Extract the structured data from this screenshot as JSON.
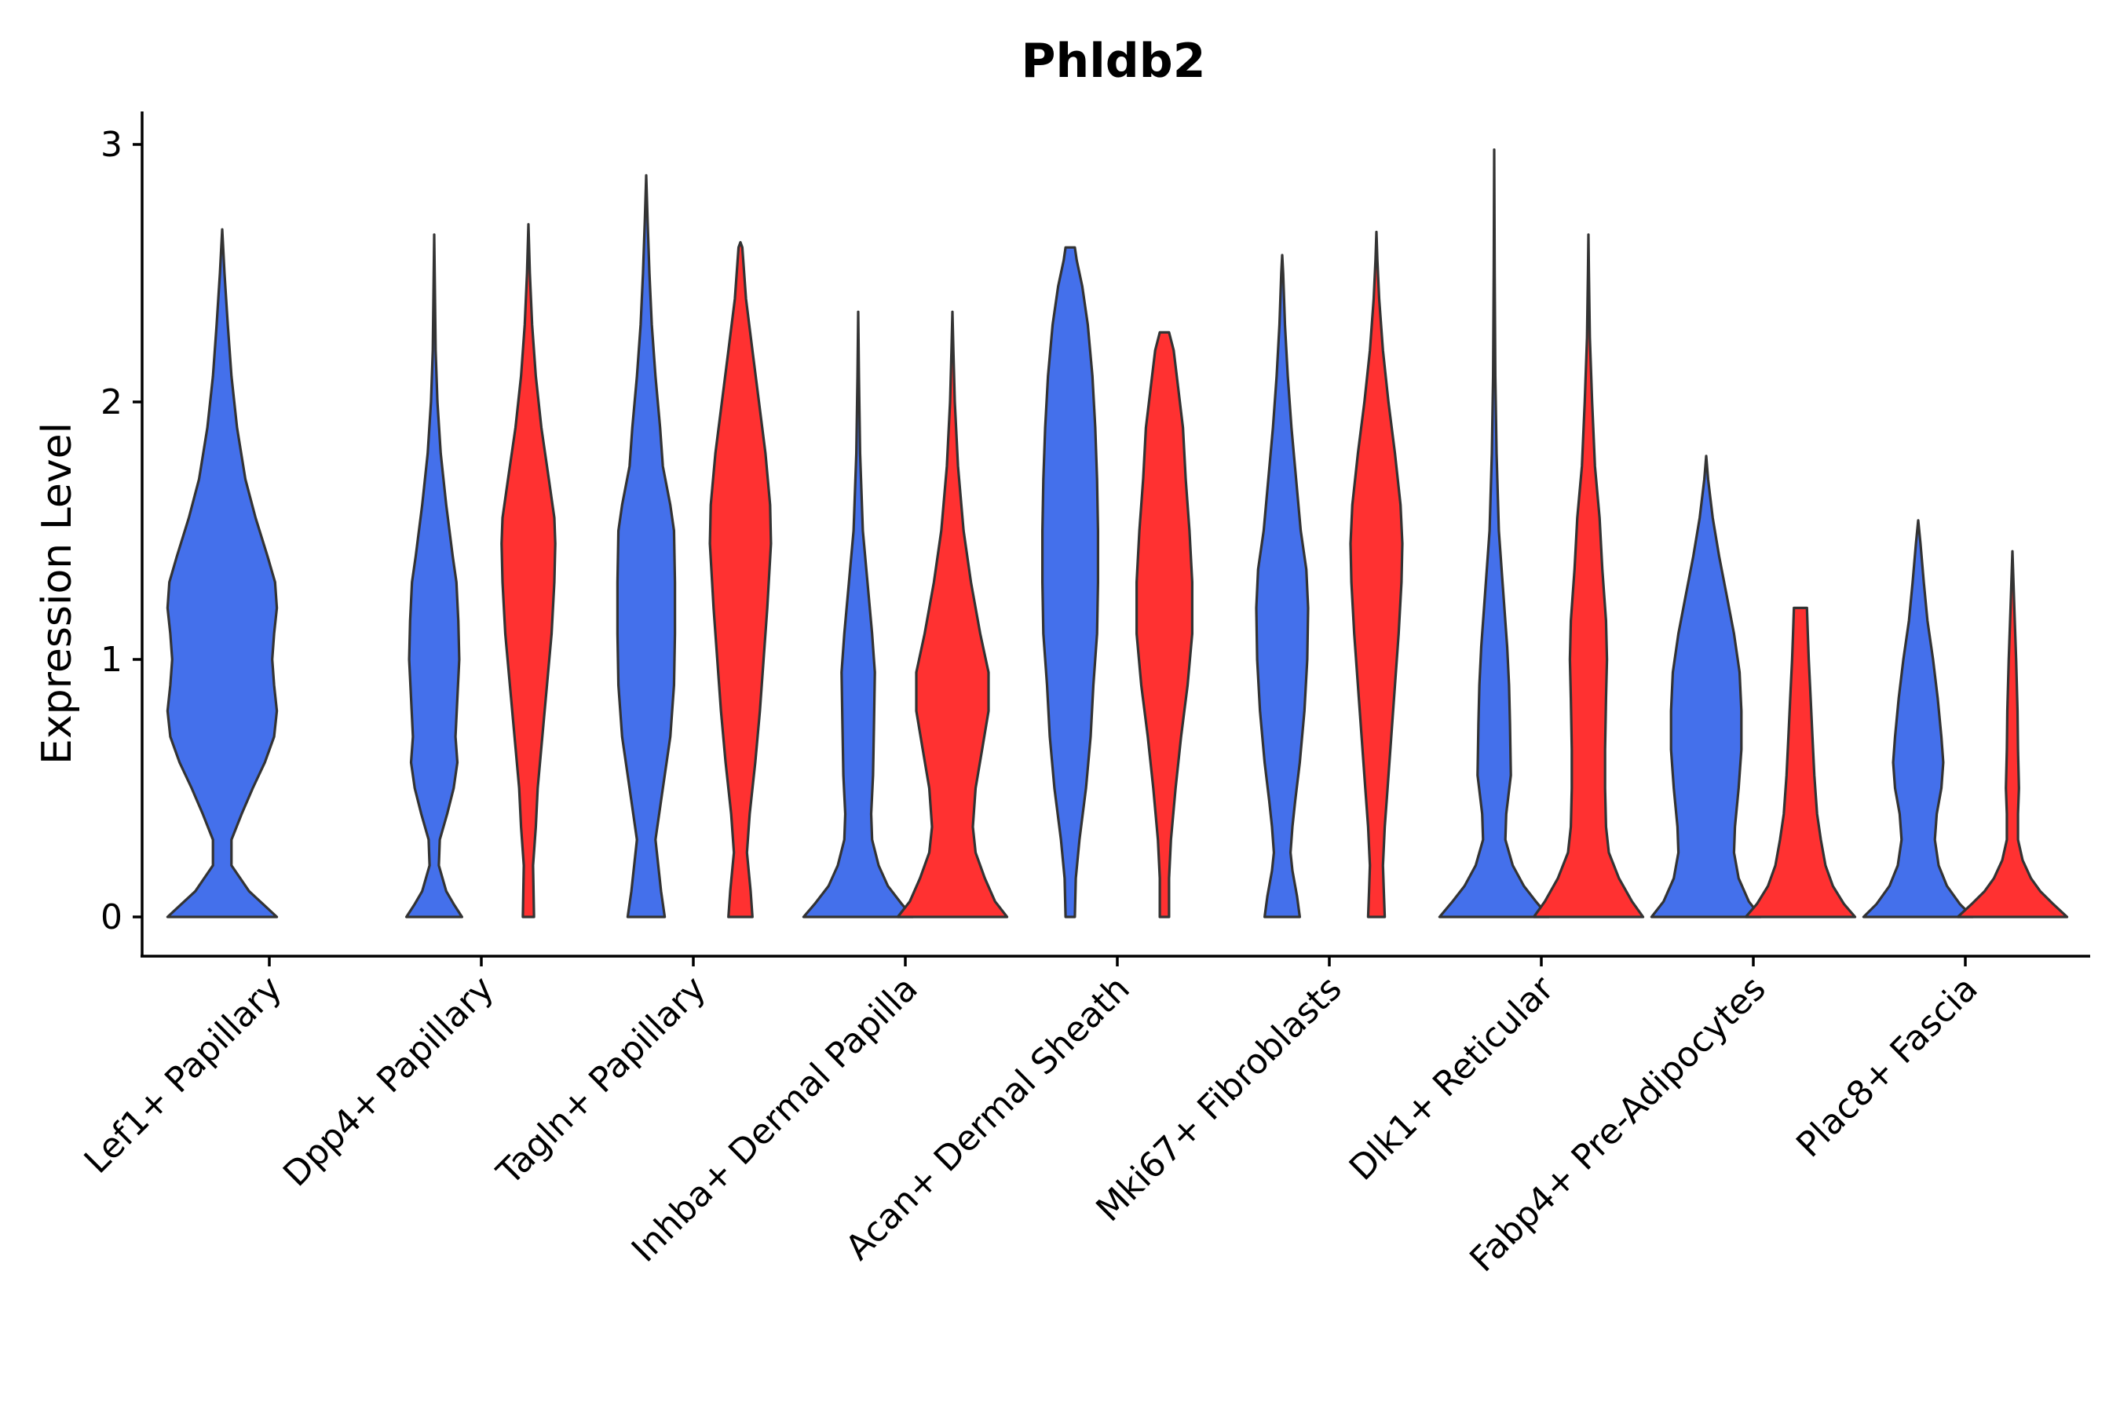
{
  "chart_data": {
    "type": "violin",
    "title": "Phldb2",
    "xlabel": "",
    "ylabel": "Expression Level",
    "ylim": [
      -0.15,
      3.15
    ],
    "yticks": [
      0,
      1,
      2,
      3
    ],
    "grid": false,
    "legend": "none",
    "colors": {
      "group_a": "#4470EB",
      "group_b": "#FF3131",
      "outline": "#333333"
    },
    "categories": [
      "Lef1+ Papillary",
      "Dpp4+ Papillary",
      "Tagln+ Papillary",
      "Inhba+ Dermal Papilla",
      "Acan+ Dermal Sheath",
      "Mki67+ Fibroblasts",
      "Dlk1+ Reticular",
      "Fabp4+ Pre-Adipocytes",
      "Plac8+ Fascia"
    ],
    "violins": [
      {
        "category": "Lef1+ Papillary",
        "group": "group_a",
        "max": 2.67,
        "profile": [
          [
            0,
            0.59
          ],
          [
            0.05,
            0.44
          ],
          [
            0.1,
            0.29
          ],
          [
            0.2,
            0.1
          ],
          [
            0.3,
            0.1
          ],
          [
            0.4,
            0.21
          ],
          [
            0.5,
            0.33
          ],
          [
            0.6,
            0.46
          ],
          [
            0.7,
            0.56
          ],
          [
            0.8,
            0.59
          ],
          [
            0.9,
            0.56
          ],
          [
            1.0,
            0.54
          ],
          [
            1.1,
            0.56
          ],
          [
            1.2,
            0.59
          ],
          [
            1.3,
            0.57
          ],
          [
            1.4,
            0.49
          ],
          [
            1.55,
            0.36
          ],
          [
            1.7,
            0.25
          ],
          [
            1.9,
            0.16
          ],
          [
            2.1,
            0.1
          ],
          [
            2.3,
            0.06
          ],
          [
            2.5,
            0.025
          ],
          [
            2.6,
            0.01
          ],
          [
            2.67,
            0
          ]
        ]
      },
      {
        "category": "Dpp4+ Papillary",
        "group": "group_a",
        "max": 2.65,
        "profile": [
          [
            0,
            0.3
          ],
          [
            0.05,
            0.21
          ],
          [
            0.1,
            0.13
          ],
          [
            0.2,
            0.05
          ],
          [
            0.3,
            0.06
          ],
          [
            0.4,
            0.14
          ],
          [
            0.5,
            0.21
          ],
          [
            0.6,
            0.25
          ],
          [
            0.7,
            0.23
          ],
          [
            0.85,
            0.25
          ],
          [
            1.0,
            0.27
          ],
          [
            1.15,
            0.26
          ],
          [
            1.3,
            0.24
          ],
          [
            1.4,
            0.2
          ],
          [
            1.6,
            0.13
          ],
          [
            1.8,
            0.07
          ],
          [
            2.0,
            0.035
          ],
          [
            2.2,
            0.015
          ],
          [
            2.5,
            0.005
          ],
          [
            2.65,
            0
          ]
        ]
      },
      {
        "category": "Dpp4+ Papillary",
        "group": "group_b",
        "max": 2.69,
        "profile": [
          [
            0,
            0.06
          ],
          [
            0.2,
            0.05
          ],
          [
            0.35,
            0.08
          ],
          [
            0.5,
            0.1
          ],
          [
            0.7,
            0.15
          ],
          [
            0.9,
            0.2
          ],
          [
            1.1,
            0.25
          ],
          [
            1.3,
            0.28
          ],
          [
            1.45,
            0.29
          ],
          [
            1.55,
            0.28
          ],
          [
            1.7,
            0.22
          ],
          [
            1.9,
            0.14
          ],
          [
            2.1,
            0.08
          ],
          [
            2.3,
            0.04
          ],
          [
            2.5,
            0.015
          ],
          [
            2.69,
            0
          ]
        ]
      },
      {
        "category": "Tagln+ Papillary",
        "group": "group_a",
        "max": 2.88,
        "profile": [
          [
            0,
            0.2
          ],
          [
            0.1,
            0.16
          ],
          [
            0.3,
            0.1
          ],
          [
            0.5,
            0.18
          ],
          [
            0.7,
            0.26
          ],
          [
            0.9,
            0.3
          ],
          [
            1.1,
            0.31
          ],
          [
            1.3,
            0.31
          ],
          [
            1.5,
            0.3
          ],
          [
            1.6,
            0.26
          ],
          [
            1.75,
            0.18
          ],
          [
            1.9,
            0.15
          ],
          [
            2.1,
            0.1
          ],
          [
            2.3,
            0.06
          ],
          [
            2.5,
            0.035
          ],
          [
            2.7,
            0.015
          ],
          [
            2.88,
            0
          ]
        ]
      },
      {
        "category": "Tagln+ Papillary",
        "group": "group_b",
        "max": 2.62,
        "profile": [
          [
            0,
            0.13
          ],
          [
            0.1,
            0.11
          ],
          [
            0.25,
            0.07
          ],
          [
            0.4,
            0.1
          ],
          [
            0.6,
            0.16
          ],
          [
            0.8,
            0.21
          ],
          [
            1.0,
            0.25
          ],
          [
            1.2,
            0.29
          ],
          [
            1.45,
            0.33
          ],
          [
            1.6,
            0.32
          ],
          [
            1.8,
            0.27
          ],
          [
            2.0,
            0.2
          ],
          [
            2.2,
            0.13
          ],
          [
            2.4,
            0.06
          ],
          [
            2.6,
            0.02
          ],
          [
            2.62,
            0
          ]
        ]
      },
      {
        "category": "Inhba+ Dermal Papilla",
        "group": "group_a",
        "max": 2.35,
        "profile": [
          [
            0,
            0.59
          ],
          [
            0.05,
            0.47
          ],
          [
            0.12,
            0.32
          ],
          [
            0.2,
            0.22
          ],
          [
            0.3,
            0.15
          ],
          [
            0.4,
            0.14
          ],
          [
            0.55,
            0.16
          ],
          [
            0.75,
            0.17
          ],
          [
            0.95,
            0.18
          ],
          [
            1.1,
            0.15
          ],
          [
            1.3,
            0.1
          ],
          [
            1.5,
            0.05
          ],
          [
            1.8,
            0.02
          ],
          [
            2.1,
            0.008
          ],
          [
            2.35,
            0
          ]
        ]
      },
      {
        "category": "Inhba+ Dermal Papilla",
        "group": "group_b",
        "max": 2.35,
        "profile": [
          [
            0,
            0.59
          ],
          [
            0.06,
            0.46
          ],
          [
            0.15,
            0.35
          ],
          [
            0.25,
            0.25
          ],
          [
            0.35,
            0.22
          ],
          [
            0.5,
            0.25
          ],
          [
            0.65,
            0.32
          ],
          [
            0.8,
            0.39
          ],
          [
            0.95,
            0.39
          ],
          [
            1.1,
            0.3
          ],
          [
            1.3,
            0.2
          ],
          [
            1.5,
            0.12
          ],
          [
            1.75,
            0.06
          ],
          [
            2.0,
            0.025
          ],
          [
            2.2,
            0.01
          ],
          [
            2.35,
            0
          ]
        ]
      },
      {
        "category": "Acan+ Dermal Sheath",
        "group": "group_a",
        "max": 2.6,
        "profile": [
          [
            0,
            0.05
          ],
          [
            0.15,
            0.06
          ],
          [
            0.3,
            0.1
          ],
          [
            0.5,
            0.17
          ],
          [
            0.7,
            0.22
          ],
          [
            0.9,
            0.25
          ],
          [
            1.1,
            0.29
          ],
          [
            1.3,
            0.3
          ],
          [
            1.5,
            0.3
          ],
          [
            1.7,
            0.29
          ],
          [
            1.9,
            0.27
          ],
          [
            2.1,
            0.24
          ],
          [
            2.3,
            0.19
          ],
          [
            2.45,
            0.13
          ],
          [
            2.55,
            0.07
          ],
          [
            2.6,
            0.05
          ]
        ]
      },
      {
        "category": "Acan+ Dermal Sheath",
        "group": "group_b",
        "max": 2.27,
        "profile": [
          [
            0,
            0.05
          ],
          [
            0.15,
            0.05
          ],
          [
            0.3,
            0.07
          ],
          [
            0.5,
            0.12
          ],
          [
            0.7,
            0.18
          ],
          [
            0.9,
            0.25
          ],
          [
            1.1,
            0.3
          ],
          [
            1.3,
            0.3
          ],
          [
            1.5,
            0.27
          ],
          [
            1.7,
            0.23
          ],
          [
            1.9,
            0.2
          ],
          [
            2.05,
            0.15
          ],
          [
            2.2,
            0.1
          ],
          [
            2.27,
            0.05
          ]
        ]
      },
      {
        "category": "Mki67+ Fibroblasts",
        "group": "group_a",
        "max": 2.57,
        "profile": [
          [
            0,
            0.19
          ],
          [
            0.08,
            0.16
          ],
          [
            0.18,
            0.11
          ],
          [
            0.25,
            0.09
          ],
          [
            0.35,
            0.11
          ],
          [
            0.45,
            0.14
          ],
          [
            0.6,
            0.19
          ],
          [
            0.8,
            0.24
          ],
          [
            1.0,
            0.27
          ],
          [
            1.2,
            0.28
          ],
          [
            1.35,
            0.26
          ],
          [
            1.5,
            0.2
          ],
          [
            1.7,
            0.15
          ],
          [
            1.9,
            0.1
          ],
          [
            2.1,
            0.06
          ],
          [
            2.3,
            0.03
          ],
          [
            2.5,
            0.01
          ],
          [
            2.57,
            0
          ]
        ]
      },
      {
        "category": "Mki67+ Fibroblasts",
        "group": "group_b",
        "max": 2.66,
        "profile": [
          [
            0,
            0.09
          ],
          [
            0.1,
            0.08
          ],
          [
            0.2,
            0.07
          ],
          [
            0.35,
            0.09
          ],
          [
            0.5,
            0.12
          ],
          [
            0.7,
            0.16
          ],
          [
            0.9,
            0.2
          ],
          [
            1.1,
            0.24
          ],
          [
            1.3,
            0.27
          ],
          [
            1.45,
            0.28
          ],
          [
            1.6,
            0.26
          ],
          [
            1.8,
            0.2
          ],
          [
            2.0,
            0.13
          ],
          [
            2.2,
            0.07
          ],
          [
            2.4,
            0.03
          ],
          [
            2.55,
            0.01
          ],
          [
            2.66,
            0
          ]
        ]
      },
      {
        "category": "Dlk1+ Reticular",
        "group": "group_a",
        "max": 2.98,
        "profile": [
          [
            0,
            0.59
          ],
          [
            0.06,
            0.45
          ],
          [
            0.12,
            0.32
          ],
          [
            0.2,
            0.2
          ],
          [
            0.3,
            0.12
          ],
          [
            0.4,
            0.13
          ],
          [
            0.55,
            0.18
          ],
          [
            0.75,
            0.17
          ],
          [
            0.9,
            0.16
          ],
          [
            1.05,
            0.14
          ],
          [
            1.3,
            0.09
          ],
          [
            1.5,
            0.05
          ],
          [
            1.8,
            0.025
          ],
          [
            2.1,
            0.012
          ],
          [
            2.5,
            0.005
          ],
          [
            2.98,
            0
          ]
        ]
      },
      {
        "category": "Dlk1+ Reticular",
        "group": "group_b",
        "max": 2.65,
        "profile": [
          [
            0,
            0.59
          ],
          [
            0.06,
            0.47
          ],
          [
            0.15,
            0.33
          ],
          [
            0.25,
            0.22
          ],
          [
            0.35,
            0.19
          ],
          [
            0.5,
            0.18
          ],
          [
            0.65,
            0.18
          ],
          [
            0.85,
            0.19
          ],
          [
            1.0,
            0.2
          ],
          [
            1.15,
            0.19
          ],
          [
            1.35,
            0.15
          ],
          [
            1.55,
            0.12
          ],
          [
            1.75,
            0.07
          ],
          [
            2.0,
            0.04
          ],
          [
            2.25,
            0.015
          ],
          [
            2.5,
            0.005
          ],
          [
            2.65,
            0
          ]
        ]
      },
      {
        "category": "Fabp4+ Pre-Adipocytes",
        "group": "group_a",
        "max": 1.79,
        "profile": [
          [
            0,
            0.59
          ],
          [
            0.06,
            0.46
          ],
          [
            0.15,
            0.35
          ],
          [
            0.25,
            0.3
          ],
          [
            0.35,
            0.31
          ],
          [
            0.5,
            0.35
          ],
          [
            0.65,
            0.38
          ],
          [
            0.8,
            0.38
          ],
          [
            0.95,
            0.36
          ],
          [
            1.1,
            0.3
          ],
          [
            1.25,
            0.22
          ],
          [
            1.4,
            0.14
          ],
          [
            1.55,
            0.07
          ],
          [
            1.7,
            0.02
          ],
          [
            1.79,
            0
          ]
        ]
      },
      {
        "category": "Fabp4+ Pre-Adipocytes",
        "group": "group_b",
        "max": 1.2,
        "profile": [
          [
            0,
            0.59
          ],
          [
            0.05,
            0.47
          ],
          [
            0.12,
            0.35
          ],
          [
            0.2,
            0.27
          ],
          [
            0.3,
            0.22
          ],
          [
            0.4,
            0.18
          ],
          [
            0.55,
            0.15
          ],
          [
            0.7,
            0.13
          ],
          [
            0.85,
            0.11
          ],
          [
            1.0,
            0.09
          ],
          [
            1.1,
            0.08
          ],
          [
            1.2,
            0.07
          ]
        ]
      },
      {
        "category": "Plac8+ Fascia",
        "group": "group_a",
        "max": 1.54,
        "profile": [
          [
            0,
            0.59
          ],
          [
            0.05,
            0.45
          ],
          [
            0.12,
            0.31
          ],
          [
            0.2,
            0.22
          ],
          [
            0.3,
            0.18
          ],
          [
            0.4,
            0.2
          ],
          [
            0.5,
            0.25
          ],
          [
            0.6,
            0.27
          ],
          [
            0.7,
            0.25
          ],
          [
            0.85,
            0.21
          ],
          [
            1.0,
            0.16
          ],
          [
            1.15,
            0.1
          ],
          [
            1.3,
            0.06
          ],
          [
            1.45,
            0.025
          ],
          [
            1.54,
            0
          ]
        ]
      },
      {
        "category": "Plac8+ Fascia",
        "group": "group_b",
        "max": 1.42,
        "profile": [
          [
            0,
            0.59
          ],
          [
            0.05,
            0.44
          ],
          [
            0.1,
            0.3
          ],
          [
            0.15,
            0.2
          ],
          [
            0.22,
            0.11
          ],
          [
            0.3,
            0.06
          ],
          [
            0.4,
            0.06
          ],
          [
            0.5,
            0.07
          ],
          [
            0.65,
            0.06
          ],
          [
            0.8,
            0.055
          ],
          [
            1.0,
            0.04
          ],
          [
            1.2,
            0.02
          ],
          [
            1.42,
            0
          ]
        ]
      }
    ]
  }
}
